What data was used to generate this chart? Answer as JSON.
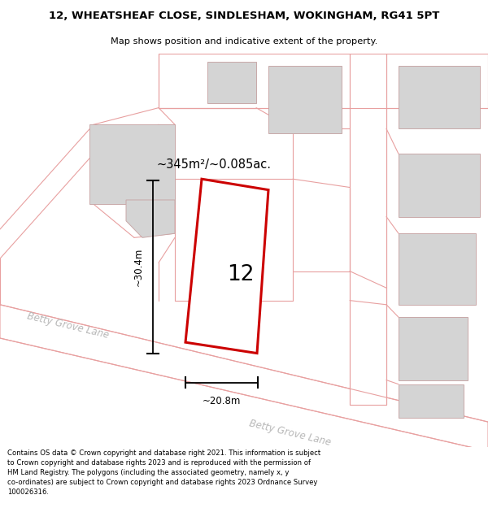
{
  "title": "12, WHEATSHEAF CLOSE, SINDLESHAM, WOKINGHAM, RG41 5PT",
  "subtitle": "Map shows position and indicative extent of the property.",
  "footer": "Contains OS data © Crown copyright and database right 2021. This information is subject to Crown copyright and database rights 2023 and is reproduced with the permission of HM Land Registry. The polygons (including the associated geometry, namely x, y co-ordinates) are subject to Crown copyright and database rights 2023 Ordnance Survey 100026316.",
  "area_text": "~345m²/~0.085ac.",
  "width_text": "~20.8m",
  "height_text": "~30.4m",
  "plot_number": "12",
  "street_name": "Betty Grove Lane",
  "highlight_color": "#cc0000",
  "road_color": "#e8a0a0",
  "building_fill": "#d4d4d4",
  "building_edge": "#c8a8a8",
  "road_fill": "#ffffff",
  "map_bg": "#f5f5f5",
  "dim_line_color": "#000000",
  "street_label_color": "#b8b8b8",
  "area_text_color": "#000000"
}
